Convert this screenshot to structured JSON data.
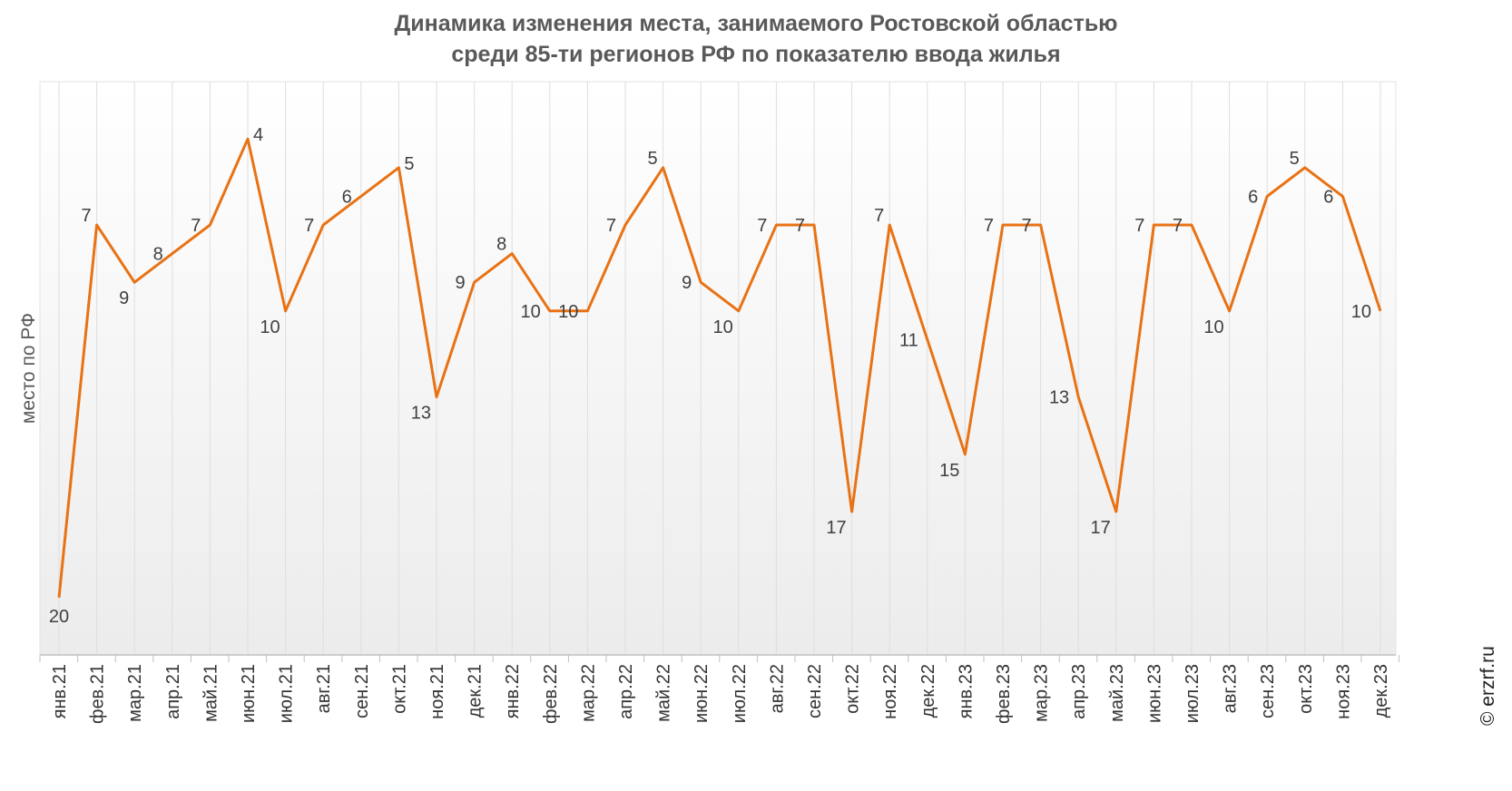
{
  "chart_data": {
    "type": "line",
    "title": "Динамика изменения места, занимаемого Ростовской областью",
    "subtitle": "среди 85-ти регионов РФ по показателю ввода жилья",
    "ylabel": "место по РФ",
    "xlabel": "",
    "y_axis_reversed": true,
    "ylim": [
      2,
      22
    ],
    "grid": "vertical",
    "categories": [
      "янв.21",
      "фев.21",
      "мар.21",
      "апр.21",
      "май.21",
      "июн.21",
      "июл.21",
      "авг.21",
      "сен.21",
      "окт.21",
      "ноя.21",
      "дек.21",
      "янв.22",
      "фев.22",
      "мар.22",
      "апр.22",
      "май.22",
      "июн.22",
      "июл.22",
      "авг.22",
      "сен.22",
      "окт.22",
      "ноя.22",
      "дек.22",
      "янв.23",
      "фев.23",
      "мар.23",
      "апр.23",
      "май.23",
      "июн.23",
      "июл.23",
      "авг.23",
      "сен.23",
      "окт.23",
      "ноя.23",
      "дек.23"
    ],
    "series": [
      {
        "values": [
          20,
          7,
          9,
          8,
          7,
          4,
          10,
          7,
          6,
          5,
          13,
          9,
          8,
          10,
          10,
          7,
          5,
          9,
          10,
          7,
          7,
          17,
          7,
          11,
          15,
          7,
          7,
          13,
          17,
          7,
          7,
          10,
          6,
          5,
          6,
          10
        ],
        "color": "#E87214"
      }
    ],
    "watermark": "© erzrf.ru"
  }
}
